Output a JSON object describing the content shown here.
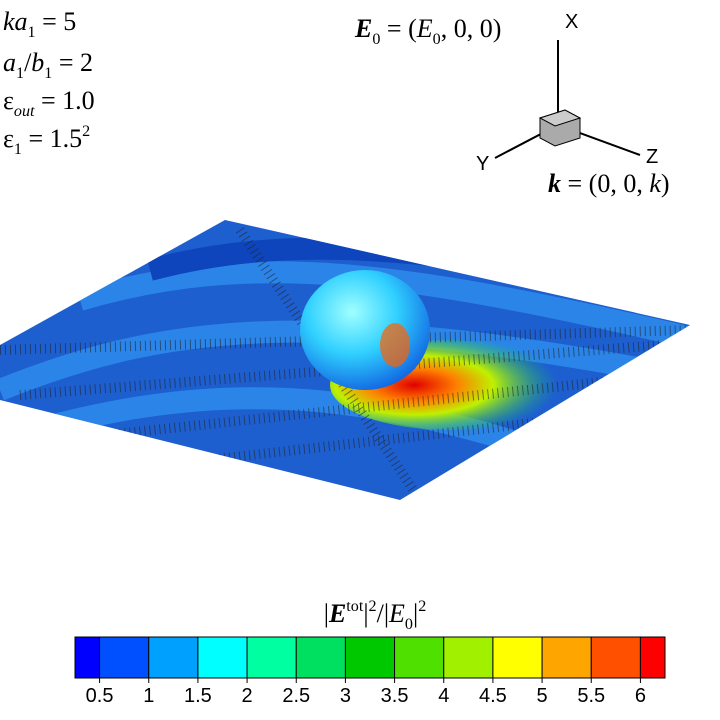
{
  "chart_data": {
    "type": "contour",
    "annotations": [
      [
        {
          "i": "ka"
        },
        {
          "sub": "1"
        },
        {
          "t": " = 5"
        }
      ],
      [
        {
          "i": "a"
        },
        {
          "sub": "1"
        },
        {
          "t": "/"
        },
        {
          "i": "b"
        },
        {
          "sub": "1"
        },
        {
          "t": " = 2"
        }
      ],
      [
        {
          "t": "ε"
        },
        {
          "subi": "out"
        },
        {
          "t": " = 1.0"
        }
      ],
      [
        {
          "t": "ε"
        },
        {
          "sub": "1"
        },
        {
          "t": " = 1.5"
        },
        {
          "sup": "2"
        }
      ],
      [
        {
          "bi": "E"
        },
        {
          "sub": "0"
        },
        {
          "t": " = ("
        },
        {
          "i": "E"
        },
        {
          "sub": "0"
        },
        {
          "t": ", 0, 0)"
        }
      ],
      [
        {
          "bi": "k"
        },
        {
          "t": " = (0, 0, "
        },
        {
          "i": "k"
        },
        {
          "t": ")"
        }
      ]
    ],
    "axis_labels": {
      "x": "X",
      "y": "Y",
      "z": "Z"
    },
    "colorbar_title": [
      {
        "t": "|"
      },
      {
        "bi": "E"
      },
      {
        "sup": "tot"
      },
      {
        "t": "|"
      },
      {
        "sup": "2"
      },
      {
        "t": "/|"
      },
      {
        "i": "E"
      },
      {
        "sub": "0"
      },
      {
        "t": "|"
      },
      {
        "sup": "2"
      }
    ],
    "zlim": [
      0.25,
      6.25
    ],
    "zticks": [
      0.5,
      1,
      1.5,
      2,
      2.5,
      3,
      3.5,
      4,
      4.5,
      5,
      5.5,
      6
    ],
    "colors": [
      "#0000ff",
      "#0050ff",
      "#00a0ff",
      "#00ffff",
      "#00ffa0",
      "#00e060",
      "#00c800",
      "#50e000",
      "#a0f000",
      "#ffff00",
      "#ffa500",
      "#ff5000",
      "#ff0000"
    ]
  }
}
